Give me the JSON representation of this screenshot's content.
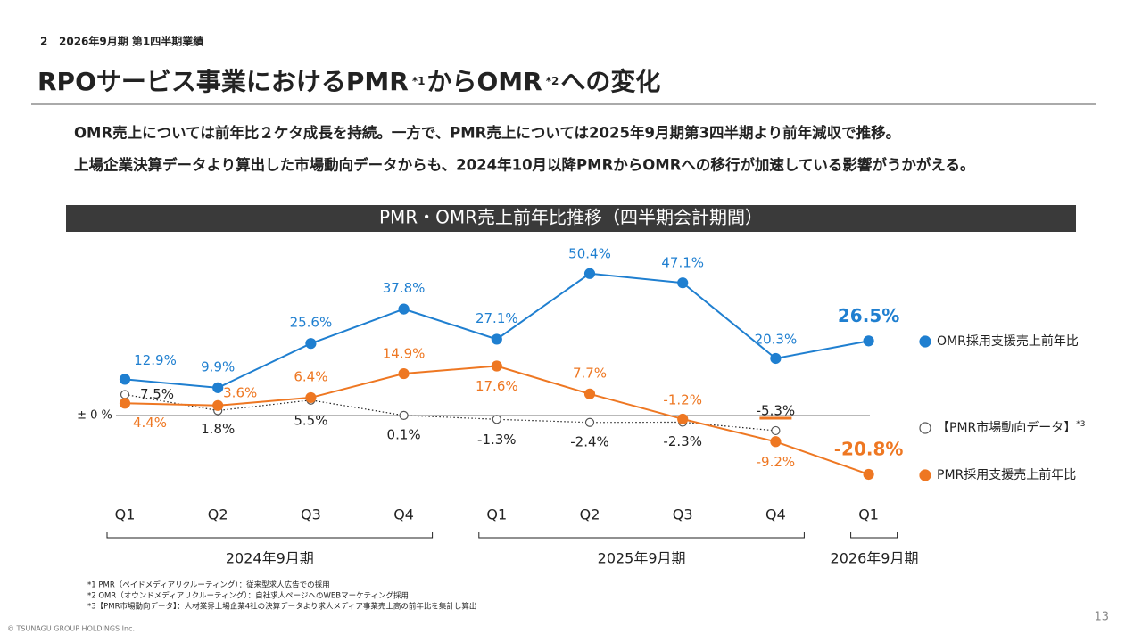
{
  "section_number": "2",
  "section": "2026年9月期 第1四半期業績",
  "title": [
    "RPOサービス事業におけるPMR",
    "*1",
    "からOMR",
    "*2",
    "への変化"
  ],
  "body": [
    "OMR売上については前年比２ケタ成長を持続。一方で、PMR売上については2025年9月期第3四半期より前年減収で推移。",
    "上場企業決算データより算出した市場動向データからも、2024年10月以降PMRからOMRへの移行が加速している影響がうかがえる。"
  ],
  "chart_data": {
    "type": "line",
    "title": "PMR・OMR売上前年比推移（四半期会計期間）",
    "categories": [
      "Q1",
      "Q2",
      "Q3",
      "Q4",
      "Q1",
      "Q2",
      "Q3",
      "Q4",
      "Q1"
    ],
    "periods": [
      "2024年9月期",
      "2025年9月期",
      "2026年9月期"
    ],
    "ylim": [
      -25,
      60
    ],
    "yticks": [
      {
        "value": 0,
        "label": "± 0 %"
      }
    ],
    "series": [
      {
        "name": "OMR採用支援売上前年比",
        "color": "#1f7fd0",
        "marker": "filled",
        "values": [
          12.9,
          9.9,
          25.6,
          37.8,
          27.1,
          50.4,
          47.1,
          20.3,
          26.5
        ],
        "value_labels": [
          "12.9%",
          "9.9%",
          "25.6%",
          "37.8%",
          "27.1%",
          "50.4%",
          "47.1%",
          "20.3%",
          "26.5%"
        ]
      },
      {
        "name": "【PMR市場動向データ】",
        "note": "*3",
        "color": "#555555",
        "marker": "hollow",
        "values": [
          7.5,
          1.8,
          5.5,
          0.1,
          -1.3,
          -2.4,
          -2.3,
          -5.3,
          null
        ],
        "value_labels": [
          "7.5%",
          "1.8%",
          "5.5%",
          "0.1%",
          "-1.3%",
          "-2.4%",
          "-2.3%",
          "-5.3%",
          null
        ]
      },
      {
        "name": "PMR採用支援売上前年比",
        "color": "#ee7722",
        "marker": "filled",
        "values": [
          4.4,
          3.6,
          6.4,
          14.9,
          17.6,
          7.7,
          -1.2,
          -9.2,
          -20.8
        ],
        "value_labels": [
          "4.4%",
          "3.6%",
          "6.4%",
          "14.9%",
          "17.6%",
          "7.7%",
          "-1.2%",
          "-9.2%",
          "-20.8%"
        ]
      }
    ]
  },
  "footnotes": [
    "*1 PMR（ペイドメディアリクルーティング）：従来型求人広告での採用",
    "*2 OMR（オウンドメディアリクルーティング）：自社求人ページへのWEBマーケティング採用",
    "*3【PMR市場動向データ】：人材業界上場企業4社の決算データより求人メディア事業売上高の前年比を集計し算出"
  ],
  "copyright": "© TSUNAGU GROUP HOLDINGS Inc.",
  "page_number": "13"
}
